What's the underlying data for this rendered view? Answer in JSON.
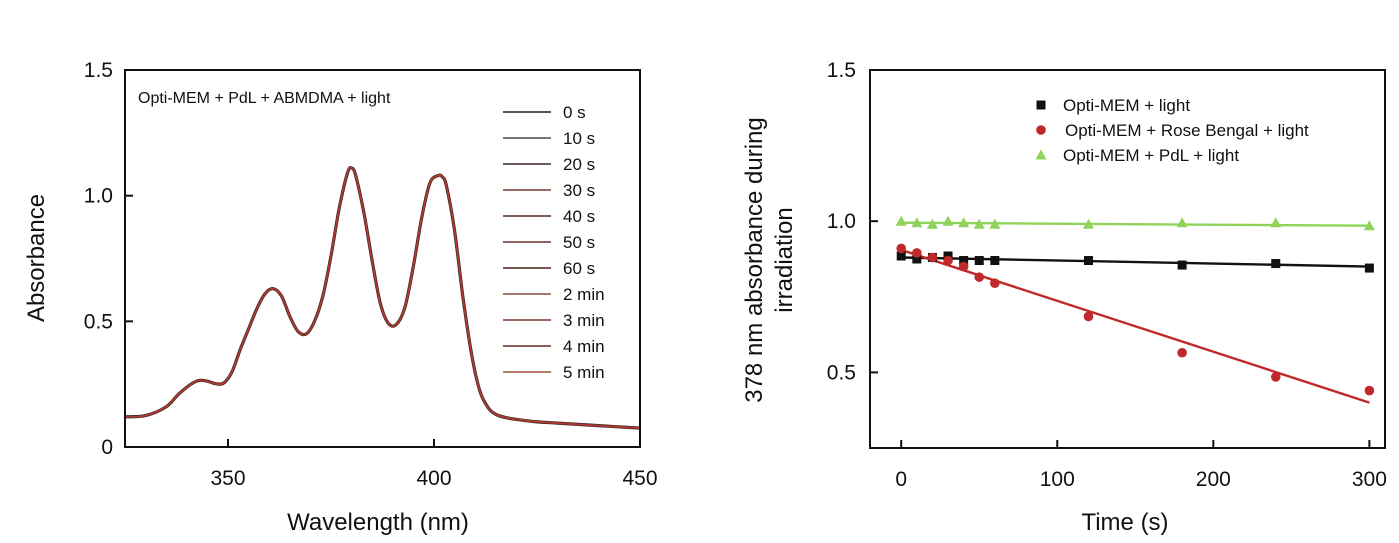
{
  "colors": {
    "spectrum": "#b03a2e",
    "black_series": "#111111",
    "red_series": "#c0282a",
    "green_series": "#8fd35a"
  },
  "chart_data": [
    {
      "type": "line",
      "title": "",
      "annotation": "Opti-MEM + PdL + ABMDMA + light",
      "xlabel": "Wavelength (nm)",
      "ylabel": "Absorbance",
      "xlim": [
        325,
        450
      ],
      "ylim": [
        0,
        1.5
      ],
      "x_ticks": [
        350,
        400,
        450
      ],
      "x_tick_labels": [
        "350",
        "400",
        "450"
      ],
      "y_ticks": [
        0,
        0.5,
        1.0,
        1.5
      ],
      "y_tick_labels": [
        "0",
        "0.5",
        "1.0",
        "1.5"
      ],
      "legend": [
        "0 s",
        "10 s",
        "20 s",
        "30 s",
        "40 s",
        "50 s",
        "60 s",
        "2 min",
        "3 min",
        "4 min",
        "5 min"
      ],
      "legend_colors": [
        "#2a1a18",
        "#4a4a4a",
        "#3a2220",
        "#7a3a32",
        "#5a2a24",
        "#6a3028",
        "#4a2420",
        "#8a4a40",
        "#7a3830",
        "#6a2a22",
        "#a05040"
      ],
      "spectrum": {
        "x": [
          325,
          330,
          335,
          338,
          341,
          343,
          345,
          347,
          349,
          351,
          353,
          355,
          357,
          359,
          361,
          363,
          365,
          367,
          369,
          371,
          373,
          375,
          377,
          379,
          380,
          381,
          383,
          385,
          387,
          389,
          391,
          393,
          395,
          397,
          399,
          401,
          402,
          403,
          405,
          407,
          409,
          411,
          413,
          415,
          418,
          421,
          425,
          430,
          440,
          450
        ],
        "y": [
          0.12,
          0.125,
          0.16,
          0.21,
          0.25,
          0.265,
          0.262,
          0.252,
          0.255,
          0.3,
          0.39,
          0.47,
          0.55,
          0.61,
          0.63,
          0.6,
          0.52,
          0.46,
          0.45,
          0.5,
          0.6,
          0.76,
          0.95,
          1.09,
          1.11,
          1.08,
          0.93,
          0.74,
          0.57,
          0.49,
          0.49,
          0.56,
          0.72,
          0.91,
          1.05,
          1.08,
          1.075,
          1.04,
          0.86,
          0.6,
          0.38,
          0.23,
          0.16,
          0.13,
          0.115,
          0.108,
          0.1,
          0.095,
          0.085,
          0.075
        ]
      }
    },
    {
      "type": "scatter",
      "title": "",
      "xlabel": "Time (s)",
      "ylabel_lines": [
        "378 nm absorbance during",
        "irradiation"
      ],
      "xlim": [
        -20,
        310
      ],
      "ylim": [
        0.25,
        1.5
      ],
      "x_ticks": [
        0,
        100,
        200,
        300
      ],
      "x_tick_labels": [
        "0",
        "100",
        "200",
        "300"
      ],
      "y_ticks": [
        0.5,
        1.0,
        1.5
      ],
      "y_tick_labels": [
        "0.5",
        "1.0",
        "1.5"
      ],
      "series": [
        {
          "name": "Opti-MEM + light",
          "marker": "square",
          "x": [
            0,
            10,
            20,
            30,
            40,
            50,
            60,
            120,
            180,
            240,
            300
          ],
          "y": [
            0.885,
            0.875,
            0.88,
            0.885,
            0.87,
            0.87,
            0.87,
            0.87,
            0.855,
            0.86,
            0.845
          ],
          "fit": [
            [
              0,
              0.88
            ],
            [
              300,
              0.85
            ]
          ]
        },
        {
          "name": "Opti-MEM + Rose Bengal + light",
          "marker": "circle",
          "x": [
            0,
            10,
            20,
            30,
            40,
            50,
            60,
            120,
            180,
            240,
            300
          ],
          "y": [
            0.91,
            0.895,
            0.88,
            0.87,
            0.85,
            0.815,
            0.795,
            0.685,
            0.565,
            0.485,
            0.44
          ],
          "fit": [
            [
              0,
              0.905
            ],
            [
              300,
              0.4
            ]
          ]
        },
        {
          "name": "Opti-MEM + PdL + light",
          "marker": "triangle",
          "x": [
            0,
            10,
            20,
            30,
            40,
            50,
            60,
            120,
            180,
            240,
            300
          ],
          "y": [
            1.0,
            0.995,
            0.99,
            1.0,
            0.995,
            0.99,
            0.99,
            0.99,
            0.995,
            0.995,
            0.985
          ],
          "fit": [
            [
              0,
              0.995
            ],
            [
              300,
              0.985
            ]
          ]
        }
      ]
    }
  ]
}
